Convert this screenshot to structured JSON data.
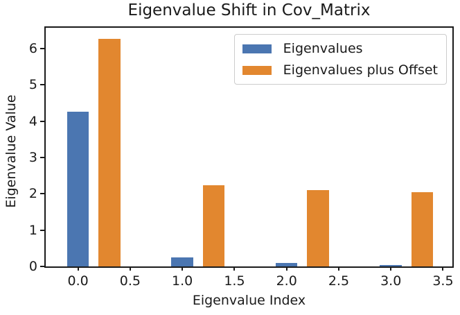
{
  "title": "Eigenvalue Shift in Cov_Matrix",
  "colors": {
    "series_blue": "#4B76B1",
    "series_orange": "#E2872F",
    "axis": "#1a1a1a",
    "legend_border": "#cccccc",
    "background": "#ffffff"
  },
  "chart_data": {
    "type": "bar",
    "title": "Eigenvalue Shift in Cov_Matrix",
    "xlabel": "Eigenvalue Index",
    "ylabel": "Eigenvalue Value",
    "x": [
      0,
      1,
      2,
      3
    ],
    "bar_width": 0.21,
    "series": [
      {
        "name": "Eigenvalues",
        "offset": 0.0,
        "color": "#4B76B1",
        "values": [
          4.26,
          0.24,
          0.1,
          0.04
        ]
      },
      {
        "name": "Eigenvalues plus Offset",
        "offset": 0.3,
        "color": "#E2872F",
        "values": [
          6.26,
          2.24,
          2.1,
          2.04
        ]
      }
    ],
    "xticks": [
      0.0,
      0.5,
      1.0,
      1.5,
      2.0,
      2.5,
      3.0,
      3.5
    ],
    "xtick_labels": [
      "0.0",
      "0.5",
      "1.0",
      "1.5",
      "2.0",
      "2.5",
      "3.0",
      "3.5"
    ],
    "yticks": [
      0,
      1,
      2,
      3,
      4,
      5,
      6
    ],
    "ytick_labels": [
      "0",
      "1",
      "2",
      "3",
      "4",
      "5",
      "6"
    ],
    "xlim": [
      -0.31,
      3.59
    ],
    "ylim": [
      0,
      6.57
    ],
    "grid": false,
    "legend_position": "upper right"
  },
  "legend": {
    "items": [
      {
        "label": "Eigenvalues",
        "color": "#4B76B1"
      },
      {
        "label": "Eigenvalues plus Offset",
        "color": "#E2872F"
      }
    ]
  }
}
